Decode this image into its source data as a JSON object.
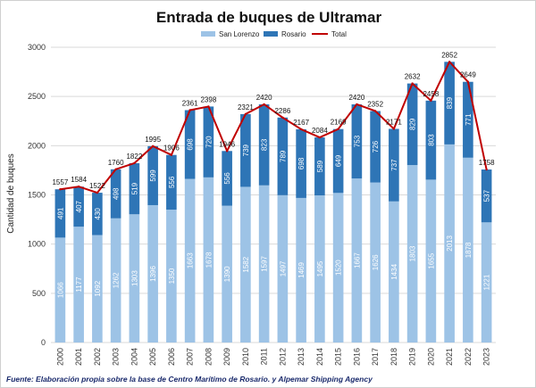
{
  "chart_data": {
    "type": "bar",
    "stacked": true,
    "title": "Entrada de buques de Ultramar",
    "ylabel": "Cantidad de buques",
    "xlabel": "",
    "ylim": [
      0,
      3000
    ],
    "yticks": [
      0,
      500,
      1000,
      1500,
      2000,
      2500,
      3000
    ],
    "grid": true,
    "legend_position": "top",
    "categories": [
      "2000",
      "2001",
      "2002",
      "2003",
      "2004",
      "2005",
      "2006",
      "2007",
      "2008",
      "2009",
      "2010",
      "2011",
      "2012",
      "2013",
      "2014",
      "2015",
      "2016",
      "2017",
      "2018",
      "2019",
      "2020",
      "2021",
      "2022",
      "2023"
    ],
    "series": [
      {
        "name": "San Lorenzo",
        "type": "bar",
        "color": "#9dc3e6",
        "values": [
          1066,
          1177,
          1092,
          1262,
          1303,
          1396,
          1350,
          1663,
          1678,
          1390,
          1582,
          1597,
          1497,
          1469,
          1495,
          1520,
          1667,
          1626,
          1434,
          1803,
          1655,
          2013,
          1878,
          1221
        ]
      },
      {
        "name": "Rosario",
        "type": "bar",
        "color": "#2e75b6",
        "values": [
          491,
          407,
          430,
          498,
          519,
          599,
          556,
          698,
          720,
          556,
          739,
          823,
          789,
          698,
          589,
          649,
          753,
          726,
          737,
          829,
          803,
          839,
          771,
          537
        ]
      },
      {
        "name": "Total",
        "type": "line",
        "color": "#c00000",
        "values": [
          1557,
          1584,
          1522,
          1760,
          1822,
          1995,
          1906,
          2361,
          2398,
          1946,
          2321,
          2420,
          2286,
          2167,
          2084,
          2169,
          2420,
          2352,
          2171,
          2632,
          2458,
          2852,
          2649,
          1758
        ]
      }
    ],
    "source": "Fuente: Elaboración propia sobre la base de Centro Marítimo de Rosario. y Alpemar Shipping Agency"
  }
}
